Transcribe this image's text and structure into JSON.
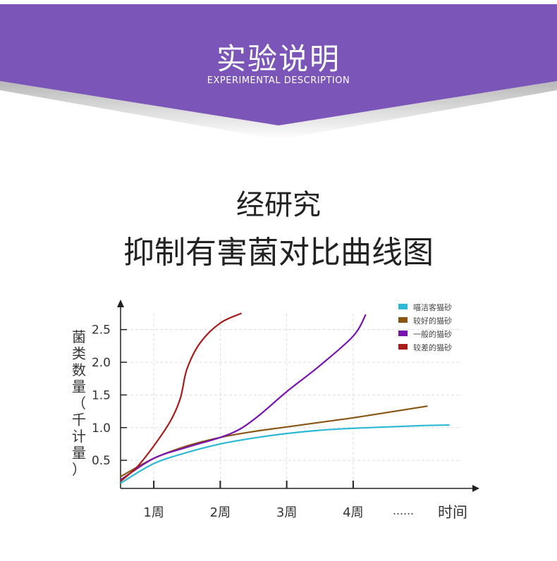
{
  "header": {
    "title": "实验说明",
    "subtitle": "EXPERIMENTAL DESCRIPTION",
    "color": "#7b55b8"
  },
  "heading": {
    "line1": "经研究",
    "line2": "抑制有害菌对比曲线图"
  },
  "chart_data": {
    "type": "line",
    "ylabel": "菌类数量（千计量）",
    "xlabel": "时间",
    "x_ticks": [
      {
        "x": 1,
        "label": "1周"
      },
      {
        "x": 2,
        "label": "2周"
      },
      {
        "x": 3,
        "label": "3周"
      },
      {
        "x": 4,
        "label": "4周"
      }
    ],
    "x_ellipsis": "……",
    "y_ticks": [
      0.5,
      1.0,
      1.5,
      2.0,
      2.5
    ],
    "y_tick_labels": [
      "0.5",
      "1.0",
      "1.5",
      "2.0",
      "2.5"
    ],
    "xlim": [
      0.5,
      5.9
    ],
    "ylim": [
      0.07,
      2.96
    ],
    "grid": true,
    "legend": "top-right",
    "series": [
      {
        "name": "喵洁客猫砂",
        "color": "#2bb9d6",
        "points": [
          [
            0.5,
            0.15
          ],
          [
            1,
            0.45
          ],
          [
            1.5,
            0.62
          ],
          [
            2,
            0.75
          ],
          [
            2.5,
            0.84
          ],
          [
            3,
            0.91
          ],
          [
            3.5,
            0.96
          ],
          [
            4,
            0.99
          ],
          [
            4.5,
            1.01
          ],
          [
            5,
            1.03
          ],
          [
            5.45,
            1.04
          ]
        ]
      },
      {
        "name": "较好的猫砂",
        "color": "#8a5614",
        "points": [
          [
            0.5,
            0.25
          ],
          [
            1,
            0.53
          ],
          [
            1.5,
            0.72
          ],
          [
            2,
            0.85
          ],
          [
            2.5,
            0.94
          ],
          [
            3,
            1.01
          ],
          [
            3.5,
            1.08
          ],
          [
            4,
            1.15
          ],
          [
            4.5,
            1.23
          ],
          [
            5.12,
            1.33
          ]
        ]
      },
      {
        "name": "一般的猫砂",
        "color": "#7a12b0",
        "points": [
          [
            0.5,
            0.2
          ],
          [
            1,
            0.53
          ],
          [
            1.5,
            0.7
          ],
          [
            2,
            0.85
          ],
          [
            2.3,
            0.98
          ],
          [
            2.6,
            1.2
          ],
          [
            3,
            1.55
          ],
          [
            3.5,
            1.95
          ],
          [
            4,
            2.4
          ],
          [
            4.19,
            2.73
          ]
        ]
      },
      {
        "name": "较差的猫砂",
        "color": "#a81c1c",
        "points": [
          [
            0.5,
            0.18
          ],
          [
            0.75,
            0.4
          ],
          [
            1,
            0.72
          ],
          [
            1.25,
            1.1
          ],
          [
            1.4,
            1.45
          ],
          [
            1.5,
            1.9
          ],
          [
            1.7,
            2.3
          ],
          [
            2,
            2.6
          ],
          [
            2.32,
            2.75
          ]
        ]
      }
    ]
  }
}
